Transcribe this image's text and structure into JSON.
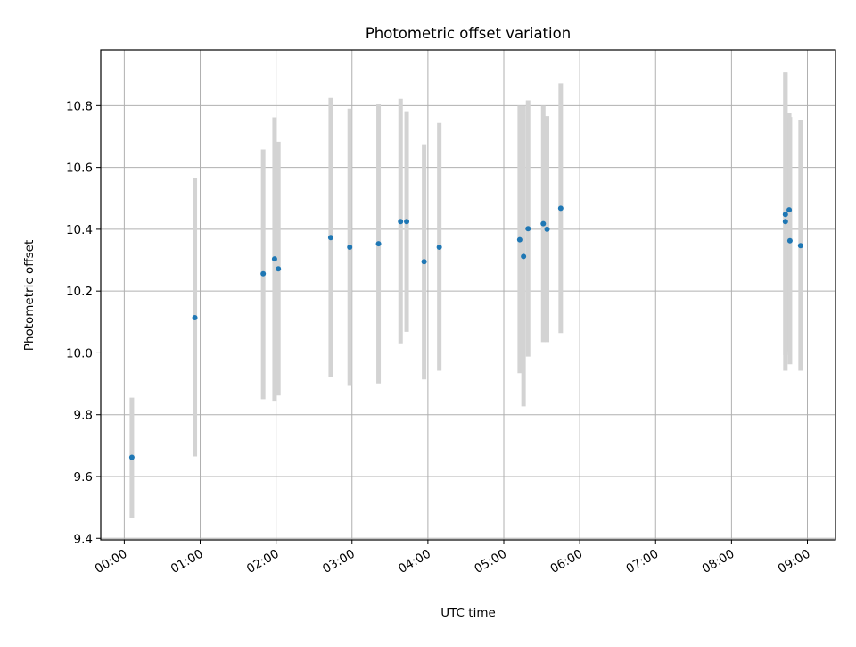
{
  "chart_data": {
    "type": "scatter",
    "title": "Photometric offset variation",
    "xlabel": "UTC time",
    "ylabel": "Photometric offset",
    "x_unit": "hours",
    "xlim": [
      -0.31,
      9.37
    ],
    "ylim": [
      9.395,
      10.98
    ],
    "grid": true,
    "x_ticks": [
      0,
      1,
      2,
      3,
      4,
      5,
      6,
      7,
      8,
      9
    ],
    "x_tick_labels": [
      "00:00",
      "01:00",
      "02:00",
      "03:00",
      "04:00",
      "05:00",
      "06:00",
      "07:00",
      "08:00",
      "09:00"
    ],
    "y_ticks": [
      9.4,
      9.6,
      9.8,
      10.0,
      10.2,
      10.4,
      10.6,
      10.8
    ],
    "y_tick_labels": [
      "9.4",
      "9.6",
      "9.8",
      "10.0",
      "10.2",
      "10.4",
      "10.6",
      "10.8"
    ],
    "marker_color": "#1f77b4",
    "errorbar_color": "#d3d3d3",
    "points": [
      {
        "x": 0.1,
        "y": 9.662,
        "err_low": 9.467,
        "err_high": 9.855
      },
      {
        "x": 0.93,
        "y": 10.114,
        "err_low": 9.665,
        "err_high": 10.565
      },
      {
        "x": 1.83,
        "y": 10.256,
        "err_low": 9.85,
        "err_high": 10.658
      },
      {
        "x": 1.98,
        "y": 10.304,
        "err_low": 9.845,
        "err_high": 10.762
      },
      {
        "x": 2.03,
        "y": 10.272,
        "err_low": 9.862,
        "err_high": 10.683
      },
      {
        "x": 2.72,
        "y": 10.373,
        "err_low": 9.922,
        "err_high": 10.825
      },
      {
        "x": 2.97,
        "y": 10.342,
        "err_low": 9.896,
        "err_high": 10.79
      },
      {
        "x": 3.35,
        "y": 10.353,
        "err_low": 9.901,
        "err_high": 10.805
      },
      {
        "x": 3.64,
        "y": 10.425,
        "err_low": 10.031,
        "err_high": 10.822
      },
      {
        "x": 3.72,
        "y": 10.425,
        "err_low": 10.068,
        "err_high": 10.782
      },
      {
        "x": 3.95,
        "y": 10.295,
        "err_low": 9.914,
        "err_high": 10.675
      },
      {
        "x": 4.15,
        "y": 10.342,
        "err_low": 9.942,
        "err_high": 10.744
      },
      {
        "x": 5.21,
        "y": 10.366,
        "err_low": 9.934,
        "err_high": 10.8
      },
      {
        "x": 5.26,
        "y": 10.312,
        "err_low": 9.827,
        "err_high": 10.8
      },
      {
        "x": 5.32,
        "y": 10.402,
        "err_low": 9.988,
        "err_high": 10.817
      },
      {
        "x": 5.52,
        "y": 10.418,
        "err_low": 10.035,
        "err_high": 10.8
      },
      {
        "x": 5.57,
        "y": 10.4,
        "err_low": 10.035,
        "err_high": 10.766
      },
      {
        "x": 5.75,
        "y": 10.468,
        "err_low": 10.064,
        "err_high": 10.872
      },
      {
        "x": 8.71,
        "y": 10.448,
        "err_low": 9.993,
        "err_high": 10.907
      },
      {
        "x": 8.71,
        "y": 10.425,
        "err_low": 9.942,
        "err_high": 10.907
      },
      {
        "x": 8.76,
        "y": 10.463,
        "err_low": 10.005,
        "err_high": 10.775
      },
      {
        "x": 8.77,
        "y": 10.363,
        "err_low": 9.963,
        "err_high": 10.763
      },
      {
        "x": 8.91,
        "y": 10.347,
        "err_low": 9.942,
        "err_high": 10.754
      }
    ]
  }
}
